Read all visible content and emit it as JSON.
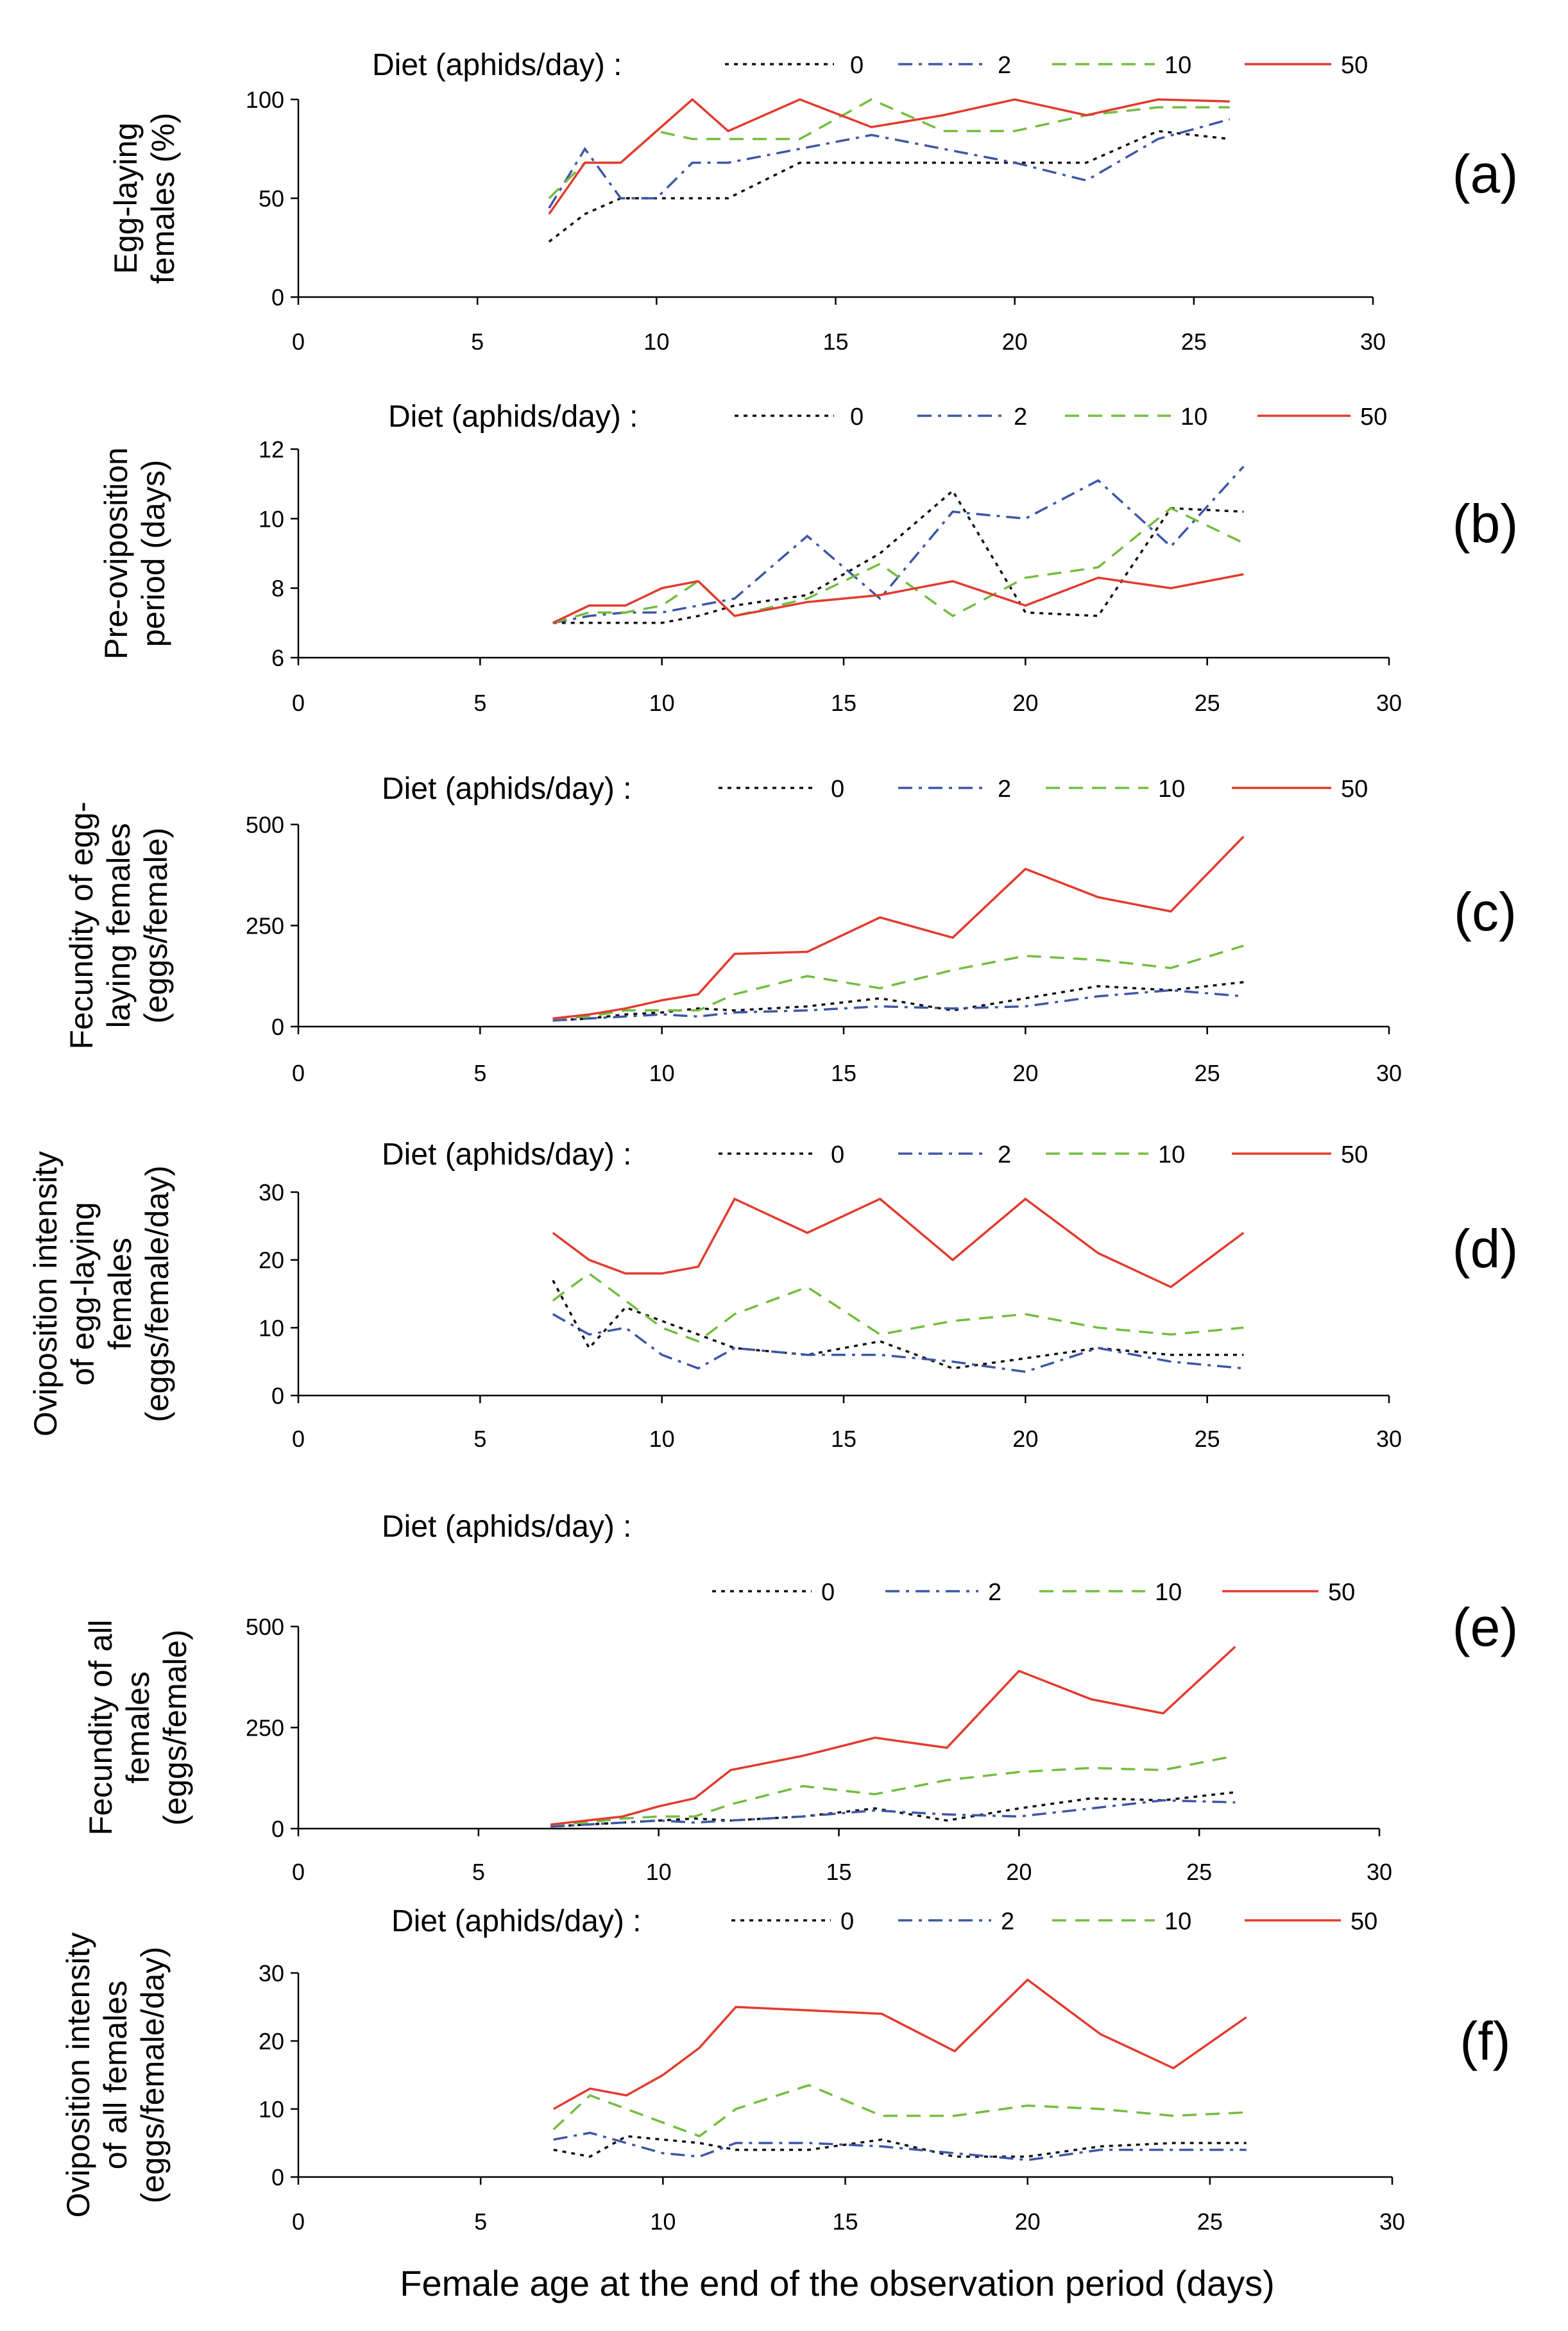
{
  "xlabel": "Female age at the end of the observation period (days)",
  "colors": {
    "0": "#111111",
    "2": "#3d57a6",
    "10": "#73bd3f",
    "50": "#e33b30"
  },
  "chart_data": [
    {
      "type": "line",
      "panel_label": "(a)",
      "ylabel": [
        "Egg-laying",
        "females (%)"
      ],
      "legend_title": "Diet (aphids/day) :",
      "x": [
        7,
        8,
        9,
        10,
        11,
        12,
        14,
        16,
        18,
        20,
        22,
        24,
        26
      ],
      "xlim": [
        0,
        30
      ],
      "xticks": [
        0,
        5,
        10,
        15,
        20,
        25,
        30
      ],
      "ylim": [
        0,
        100
      ],
      "yticks": [
        0,
        50,
        100
      ],
      "series": [
        {
          "name": "0",
          "style": "dotted",
          "values": [
            28,
            42,
            50,
            50,
            50,
            50,
            68,
            68,
            68,
            68,
            68,
            84,
            80
          ]
        },
        {
          "name": "2",
          "style": "dashdot",
          "values": [
            45,
            75,
            50,
            50,
            68,
            68,
            75,
            82,
            75,
            68,
            59,
            80,
            90
          ]
        },
        {
          "name": "10",
          "style": "dashed",
          "values": [
            50,
            68,
            68,
            84,
            80,
            80,
            80,
            100,
            84,
            84,
            92,
            96,
            96
          ]
        },
        {
          "name": "50",
          "style": "solid",
          "values": [
            42,
            68,
            68,
            84,
            100,
            84,
            100,
            86,
            92,
            100,
            92,
            100,
            99
          ]
        }
      ]
    },
    {
      "type": "line",
      "panel_label": "(b)",
      "ylabel": [
        "Pre-oviposition",
        "period (days)"
      ],
      "legend_title": "Diet (aphids/day) :",
      "x": [
        7,
        8,
        9,
        10,
        11,
        12,
        14,
        16,
        18,
        20,
        22,
        24,
        26
      ],
      "xlim": [
        0,
        30
      ],
      "xticks": [
        0,
        5,
        10,
        15,
        20,
        25,
        30
      ],
      "ylim": [
        6,
        12
      ],
      "yticks": [
        6,
        8,
        10,
        12
      ],
      "series": [
        {
          "name": "0",
          "style": "dotted",
          "values": [
            7.0,
            7.0,
            7.0,
            7.0,
            7.2,
            7.5,
            7.8,
            9.0,
            10.8,
            7.3,
            7.2,
            10.3,
            10.2
          ]
        },
        {
          "name": "2",
          "style": "dashdot",
          "values": [
            7.0,
            7.2,
            7.3,
            7.3,
            7.5,
            7.7,
            9.5,
            7.7,
            10.2,
            10.0,
            11.1,
            9.2,
            11.5
          ]
        },
        {
          "name": "10",
          "style": "dashed",
          "values": [
            7.0,
            7.3,
            7.3,
            7.5,
            8.2,
            7.2,
            7.7,
            8.7,
            7.2,
            8.3,
            8.6,
            10.3,
            9.3
          ]
        },
        {
          "name": "50",
          "style": "solid",
          "values": [
            7.0,
            7.5,
            7.5,
            8.0,
            8.2,
            7.2,
            7.6,
            7.8,
            8.2,
            7.5,
            8.3,
            8.0,
            8.4
          ]
        }
      ]
    },
    {
      "type": "line",
      "panel_label": "(c)",
      "ylabel": [
        "Fecundity of egg-",
        "laying females",
        "(eggs/female)"
      ],
      "legend_title": "Diet (aphids/day) :",
      "x": [
        7,
        8,
        9,
        10,
        11,
        12,
        14,
        16,
        18,
        20,
        22,
        24,
        26
      ],
      "xlim": [
        0,
        30
      ],
      "xticks": [
        0,
        5,
        10,
        15,
        20,
        25,
        30
      ],
      "ylim": [
        0,
        500
      ],
      "yticks": [
        0,
        250,
        500
      ],
      "series": [
        {
          "name": "0",
          "style": "dotted",
          "values": [
            15,
            20,
            30,
            35,
            45,
            40,
            50,
            70,
            40,
            70,
            100,
            90,
            110
          ]
        },
        {
          "name": "2",
          "style": "dashdot",
          "values": [
            15,
            20,
            25,
            30,
            25,
            35,
            40,
            50,
            45,
            50,
            75,
            90,
            75
          ]
        },
        {
          "name": "10",
          "style": "dashed",
          "values": [
            20,
            25,
            40,
            40,
            40,
            80,
            125,
            95,
            140,
            175,
            165,
            145,
            200
          ]
        },
        {
          "name": "50",
          "style": "solid",
          "values": [
            20,
            30,
            45,
            65,
            80,
            180,
            185,
            270,
            220,
            390,
            320,
            285,
            470
          ]
        }
      ]
    },
    {
      "type": "line",
      "panel_label": "(d)",
      "ylabel": [
        "Oviposition intensity",
        "of egg-laying",
        "females",
        "(eggs/female/day)"
      ],
      "legend_title": "Diet (aphids/day) :",
      "x": [
        7,
        8,
        9,
        10,
        11,
        12,
        14,
        16,
        18,
        20,
        22,
        24,
        26
      ],
      "xlim": [
        0,
        30
      ],
      "xticks": [
        0,
        5,
        10,
        15,
        20,
        25,
        30
      ],
      "ylim": [
        0,
        30
      ],
      "yticks": [
        0,
        10,
        20,
        30
      ],
      "series": [
        {
          "name": "0",
          "style": "dotted",
          "values": [
            17,
            7,
            13,
            11,
            9,
            7,
            6,
            8,
            4,
            5.5,
            7,
            6,
            6
          ]
        },
        {
          "name": "2",
          "style": "dashdot",
          "values": [
            12,
            9,
            10,
            6,
            4,
            7,
            6,
            6,
            5,
            3.5,
            7,
            5,
            4
          ]
        },
        {
          "name": "10",
          "style": "dashed",
          "values": [
            14,
            18,
            14,
            10,
            8,
            12,
            16,
            9,
            11,
            12,
            10,
            9,
            10
          ]
        },
        {
          "name": "50",
          "style": "solid",
          "values": [
            24,
            20,
            18,
            18,
            19,
            29,
            24,
            29,
            20,
            29,
            21,
            16,
            24
          ]
        }
      ]
    },
    {
      "type": "line",
      "panel_label": "(e)",
      "ylabel": [
        "Fecundity of all",
        "females",
        "(eggs/female)"
      ],
      "legend_title": "Diet (aphids/day) :",
      "x": [
        7,
        8,
        9,
        10,
        11,
        12,
        14,
        16,
        18,
        20,
        22,
        24,
        26
      ],
      "xlim": [
        0,
        30
      ],
      "xticks": [
        0,
        5,
        10,
        15,
        20,
        25,
        30
      ],
      "ylim": [
        0,
        500
      ],
      "yticks": [
        0,
        250,
        500
      ],
      "series": [
        {
          "name": "0",
          "style": "dotted",
          "values": [
            5,
            10,
            15,
            20,
            25,
            20,
            30,
            50,
            20,
            50,
            75,
            70,
            90
          ]
        },
        {
          "name": "2",
          "style": "dashdot",
          "values": [
            5,
            10,
            15,
            20,
            15,
            20,
            30,
            45,
            35,
            30,
            50,
            70,
            65
          ]
        },
        {
          "name": "10",
          "style": "dashed",
          "values": [
            10,
            15,
            25,
            30,
            30,
            60,
            105,
            85,
            120,
            140,
            150,
            145,
            180
          ]
        },
        {
          "name": "50",
          "style": "solid",
          "values": [
            10,
            20,
            30,
            55,
            75,
            145,
            180,
            225,
            200,
            390,
            320,
            285,
            450
          ]
        }
      ]
    },
    {
      "type": "line",
      "panel_label": "(f)",
      "ylabel": [
        "Oviposition intensity",
        "of all females",
        "(eggs/female/day)"
      ],
      "legend_title": "Diet (aphids/day) :",
      "x": [
        7,
        8,
        9,
        10,
        11,
        12,
        14,
        16,
        18,
        20,
        22,
        24,
        26
      ],
      "xlim": [
        0,
        30
      ],
      "xticks": [
        0,
        5,
        10,
        15,
        20,
        25,
        30
      ],
      "ylim": [
        0,
        30
      ],
      "yticks": [
        0,
        10,
        20,
        30
      ],
      "series": [
        {
          "name": "0",
          "style": "dotted",
          "values": [
            4,
            3,
            6,
            5.5,
            5,
            4,
            4,
            5.5,
            3,
            3,
            4.5,
            5,
            5
          ]
        },
        {
          "name": "2",
          "style": "dashdot",
          "values": [
            5.5,
            6.5,
            5,
            3.5,
            3,
            5,
            5,
            4.5,
            3.5,
            2.5,
            4,
            4,
            4
          ]
        },
        {
          "name": "10",
          "style": "dashed",
          "values": [
            7,
            12,
            10,
            8,
            6,
            10,
            13.5,
            9,
            9,
            10.5,
            10,
            9,
            9.5
          ]
        },
        {
          "name": "50",
          "style": "solid",
          "values": [
            10,
            13,
            12,
            15,
            19,
            25,
            24.5,
            24,
            18.5,
            29,
            21,
            16,
            23.5
          ]
        }
      ]
    }
  ]
}
